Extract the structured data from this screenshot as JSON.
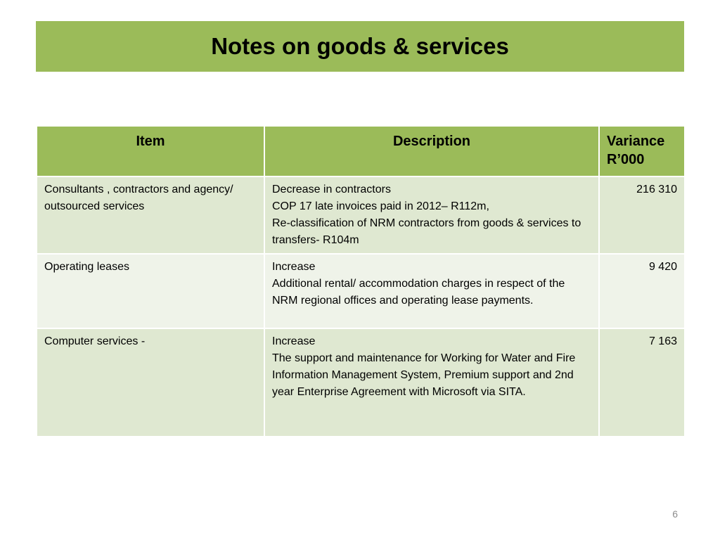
{
  "slide": {
    "title": "Notes on goods & services",
    "page_number": "6"
  },
  "table": {
    "headers": {
      "item": "Item",
      "description": "Description",
      "variance_line1": "Variance",
      "variance_line2": "R’000"
    },
    "rows": [
      {
        "item": "Consultants , contractors and agency/ outsourced services",
        "description": [
          "Decrease in contractors",
          "COP 17 late invoices paid in 2012– R112m,",
          "Re-classification of NRM contractors from goods & services to transfers- R104m"
        ],
        "variance": "216 310"
      },
      {
        "item": "Operating leases",
        "description": [
          "Increase",
          "Additional rental/ accommodation charges in respect of the NRM regional offices and operating lease payments."
        ],
        "variance": "9 420"
      },
      {
        "item": "Computer services -",
        "description": [
          "Increase",
          "The support and maintenance for Working for Water and Fire  Information Management System, Premium support and 2nd year Enterprise Agreement with Microsoft via SITA."
        ],
        "variance": "7 163"
      }
    ]
  },
  "colors": {
    "accent_green": "#9bbb59",
    "row_band_dark": "#dfe8d1",
    "row_band_light": "#eff3e9"
  }
}
